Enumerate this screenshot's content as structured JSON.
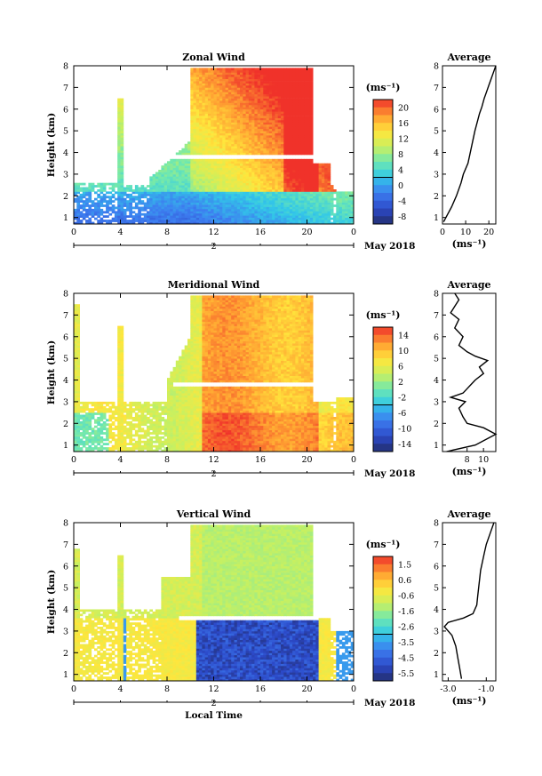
{
  "chart_data": [
    {
      "type": "heatmap",
      "title": "Zonal Wind",
      "ylabel": "Height (km)",
      "xticks": [
        "0",
        "4",
        "8",
        "12",
        "16",
        "20",
        "0"
      ],
      "yticks": [
        "1",
        "2",
        "3",
        "4",
        "5",
        "6",
        "7",
        "8"
      ],
      "ylim": [
        0.7,
        8
      ],
      "day_label": "2",
      "date_label": "May 2018",
      "colorbar": {
        "unit": "(ms⁻¹)",
        "ticks": [
          "20",
          "16",
          "12",
          "8",
          "4",
          "0",
          "-4",
          "-8"
        ],
        "min": -10,
        "max": 22
      },
      "average_profile": {
        "title": "Average",
        "xlabel": "(ms⁻¹)",
        "xticks": [
          "0",
          "10",
          "20"
        ],
        "xlim": [
          0,
          23
        ],
        "x": [
          0.5,
          2,
          4,
          6,
          8,
          9,
          11,
          12,
          13,
          14,
          15,
          16,
          17,
          18,
          19,
          20,
          21,
          22,
          23
        ],
        "y": [
          0.8,
          1.1,
          1.5,
          2.0,
          2.6,
          3.0,
          3.5,
          4.0,
          4.5,
          5.0,
          5.4,
          5.8,
          6.1,
          6.5,
          6.8,
          7.1,
          7.4,
          7.7,
          8.0
        ]
      }
    },
    {
      "type": "heatmap",
      "title": "Meridional Wind",
      "ylabel": "Height (km)",
      "xticks": [
        "0",
        "4",
        "8",
        "12",
        "16",
        "20",
        "0"
      ],
      "yticks": [
        "1",
        "2",
        "3",
        "4",
        "5",
        "6",
        "7",
        "8"
      ],
      "ylim": [
        0.7,
        8
      ],
      "day_label": "2",
      "date_label": "May 2018",
      "colorbar": {
        "unit": "(ms⁻¹)",
        "ticks": [
          "14",
          "10",
          "6",
          "2",
          "-2",
          "-6",
          "-10",
          "-14"
        ],
        "min": -16,
        "max": 16
      },
      "average_profile": {
        "title": "Average",
        "xlabel": "(ms⁻¹)",
        "xticks": [
          "8",
          "10"
        ],
        "xlim": [
          5,
          11.5
        ],
        "x": [
          5.5,
          9,
          11.5,
          10,
          8,
          7.5,
          7,
          7.8,
          6,
          7.5,
          8,
          8.5,
          9,
          10,
          9.5,
          10.5,
          9,
          8,
          7,
          7.5,
          6.5,
          7,
          6,
          6.5,
          7,
          6.5
        ],
        "y": [
          0.7,
          1.0,
          1.5,
          1.8,
          2.0,
          2.3,
          2.7,
          3.0,
          3.2,
          3.4,
          3.6,
          3.8,
          4.0,
          4.3,
          4.6,
          4.9,
          5.1,
          5.3,
          5.6,
          6.0,
          6.4,
          6.8,
          7.1,
          7.4,
          7.7,
          8.0
        ]
      }
    },
    {
      "type": "heatmap",
      "title": "Vertical Wind",
      "ylabel": "Height (km)",
      "xlabel": "Local Time",
      "xticks": [
        "0",
        "4",
        "8",
        "12",
        "16",
        "20",
        "0"
      ],
      "yticks": [
        "1",
        "2",
        "3",
        "4",
        "5",
        "6",
        "7",
        "8"
      ],
      "ylim": [
        0.7,
        8
      ],
      "day_label": "2",
      "date_label": "May 2018",
      "colorbar": {
        "unit": "(ms⁻¹)",
        "ticks": [
          "1.5",
          "0.6",
          "-0.6",
          "-1.6",
          "-2.6",
          "-3.5",
          "-4.5",
          "-5.5"
        ],
        "min": -6,
        "max": 2
      },
      "average_profile": {
        "title": "Average",
        "xlabel": "(ms⁻¹)",
        "xticks": [
          "-3.0",
          "-1.0"
        ],
        "xlim": [
          -3.3,
          -0.5
        ],
        "x": [
          -2.3,
          -2.4,
          -2.5,
          -2.6,
          -2.8,
          -3.2,
          -3.0,
          -2.2,
          -1.7,
          -1.5,
          -1.45,
          -1.4,
          -1.35,
          -1.3,
          -1.2,
          -1.1,
          -1.0,
          -0.8,
          -0.6
        ],
        "y": [
          0.8,
          1.3,
          1.8,
          2.3,
          2.8,
          3.2,
          3.4,
          3.6,
          3.8,
          4.2,
          4.6,
          5.0,
          5.4,
          5.8,
          6.2,
          6.6,
          7.0,
          7.5,
          8.0
        ]
      }
    }
  ]
}
